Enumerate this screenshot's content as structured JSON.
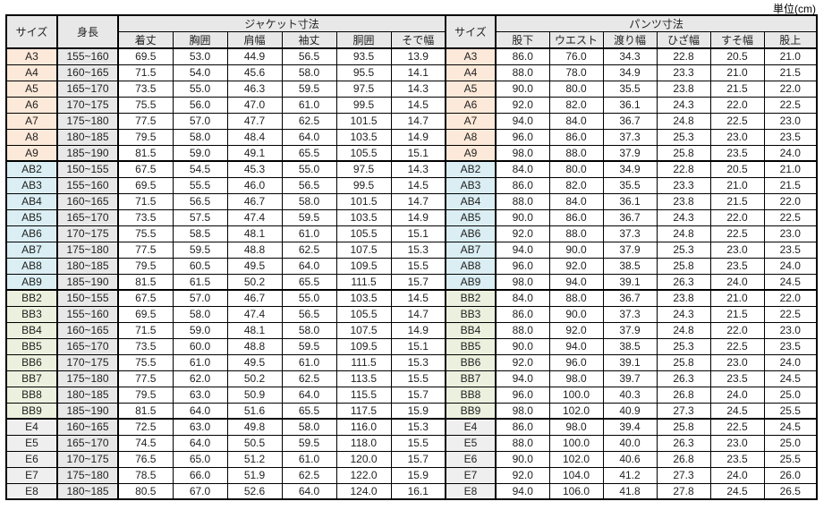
{
  "unit_label": "単位(cm)",
  "table": {
    "headers": {
      "size_left": "サイズ",
      "height": "身長",
      "jacket_group": "ジャケット寸法",
      "jacket_cols": [
        "着丈",
        "胸囲",
        "肩幅",
        "袖丈",
        "胴囲",
        "そで幅"
      ],
      "size_right": "サイズ",
      "pants_group": "パンツ寸法",
      "pants_cols": [
        "股下",
        "ウエスト",
        "渡り幅",
        "ひざ幅",
        "すそ幅",
        "股上"
      ]
    },
    "colors": {
      "header_bg": "#E8E8E8",
      "height_col_bg": "#E8E8E8",
      "group_a": "#FDE9D9",
      "group_ab": "#DAEEF3",
      "group_bb": "#EBF1DE",
      "group_e": "#EFEFEF",
      "border": "#000000"
    },
    "groups": [
      {
        "name": "A",
        "row_color": "#FDE9D9",
        "rows": [
          {
            "size": "A3",
            "height": "155~160",
            "jacket": [
              "69.5",
              "53.0",
              "44.9",
              "56.5",
              "93.5",
              "13.9"
            ],
            "pants": [
              "86.0",
              "76.0",
              "34.3",
              "22.8",
              "20.5",
              "21.0"
            ]
          },
          {
            "size": "A4",
            "height": "160~165",
            "jacket": [
              "71.5",
              "54.0",
              "45.6",
              "58.0",
              "95.5",
              "14.1"
            ],
            "pants": [
              "88.0",
              "78.0",
              "34.9",
              "23.3",
              "21.0",
              "21.5"
            ]
          },
          {
            "size": "A5",
            "height": "165~170",
            "jacket": [
              "73.5",
              "55.0",
              "46.3",
              "59.5",
              "97.5",
              "14.3"
            ],
            "pants": [
              "90.0",
              "80.0",
              "35.5",
              "23.8",
              "21.5",
              "22.0"
            ]
          },
          {
            "size": "A6",
            "height": "170~175",
            "jacket": [
              "75.5",
              "56.0",
              "47.0",
              "61.0",
              "99.5",
              "14.5"
            ],
            "pants": [
              "92.0",
              "82.0",
              "36.1",
              "24.3",
              "22.0",
              "22.5"
            ]
          },
          {
            "size": "A7",
            "height": "175~180",
            "jacket": [
              "77.5",
              "57.0",
              "47.7",
              "62.5",
              "101.5",
              "14.7"
            ],
            "pants": [
              "94.0",
              "84.0",
              "36.7",
              "24.8",
              "22.5",
              "23.0"
            ]
          },
          {
            "size": "A8",
            "height": "180~185",
            "jacket": [
              "79.5",
              "58.0",
              "48.4",
              "64.0",
              "103.5",
              "14.9"
            ],
            "pants": [
              "96.0",
              "86.0",
              "37.3",
              "25.3",
              "23.0",
              "23.5"
            ]
          },
          {
            "size": "A9",
            "height": "185~190",
            "jacket": [
              "81.5",
              "59.0",
              "49.1",
              "65.5",
              "105.5",
              "15.1"
            ],
            "pants": [
              "98.0",
              "88.0",
              "37.9",
              "25.8",
              "23.5",
              "24.0"
            ]
          }
        ]
      },
      {
        "name": "AB",
        "row_color": "#DAEEF3",
        "rows": [
          {
            "size": "AB2",
            "height": "150~155",
            "jacket": [
              "67.5",
              "54.5",
              "45.3",
              "55.0",
              "97.5",
              "14.3"
            ],
            "pants": [
              "84.0",
              "80.0",
              "34.9",
              "22.8",
              "20.5",
              "21.0"
            ]
          },
          {
            "size": "AB3",
            "height": "155~160",
            "jacket": [
              "69.5",
              "55.5",
              "46.0",
              "56.5",
              "99.5",
              "14.5"
            ],
            "pants": [
              "86.0",
              "82.0",
              "35.5",
              "23.3",
              "21.0",
              "21.5"
            ]
          },
          {
            "size": "AB4",
            "height": "160~165",
            "jacket": [
              "71.5",
              "56.5",
              "46.7",
              "58.0",
              "101.5",
              "14.7"
            ],
            "pants": [
              "88.0",
              "84.0",
              "36.1",
              "23.8",
              "21.5",
              "22.0"
            ]
          },
          {
            "size": "AB5",
            "height": "165~170",
            "jacket": [
              "73.5",
              "57.5",
              "47.4",
              "59.5",
              "103.5",
              "14.9"
            ],
            "pants": [
              "90.0",
              "86.0",
              "36.7",
              "24.3",
              "22.0",
              "22.5"
            ]
          },
          {
            "size": "AB6",
            "height": "170~175",
            "jacket": [
              "75.5",
              "58.5",
              "48.1",
              "61.0",
              "105.5",
              "15.1"
            ],
            "pants": [
              "92.0",
              "88.0",
              "37.3",
              "24.8",
              "22.5",
              "23.0"
            ]
          },
          {
            "size": "AB7",
            "height": "175~180",
            "jacket": [
              "77.5",
              "59.5",
              "48.8",
              "62.5",
              "107.5",
              "15.3"
            ],
            "pants": [
              "94.0",
              "90.0",
              "37.9",
              "25.3",
              "23.0",
              "23.5"
            ]
          },
          {
            "size": "AB8",
            "height": "180~185",
            "jacket": [
              "79.5",
              "60.5",
              "49.5",
              "64.0",
              "109.5",
              "15.5"
            ],
            "pants": [
              "96.0",
              "92.0",
              "38.5",
              "25.8",
              "23.5",
              "24.0"
            ]
          },
          {
            "size": "AB9",
            "height": "185~190",
            "jacket": [
              "81.5",
              "61.5",
              "50.2",
              "65.5",
              "111.5",
              "15.7"
            ],
            "pants": [
              "98.0",
              "94.0",
              "39.1",
              "26.3",
              "24.0",
              "24.5"
            ]
          }
        ]
      },
      {
        "name": "BB",
        "row_color": "#EBF1DE",
        "rows": [
          {
            "size": "BB2",
            "height": "150~155",
            "jacket": [
              "67.5",
              "57.0",
              "46.7",
              "55.0",
              "103.5",
              "14.5"
            ],
            "pants": [
              "84.0",
              "88.0",
              "36.7",
              "23.8",
              "21.0",
              "22.0"
            ]
          },
          {
            "size": "BB3",
            "height": "155~160",
            "jacket": [
              "69.5",
              "58.0",
              "47.4",
              "56.5",
              "105.5",
              "14.7"
            ],
            "pants": [
              "86.0",
              "90.0",
              "37.3",
              "24.3",
              "21.5",
              "22.5"
            ]
          },
          {
            "size": "BB4",
            "height": "160~165",
            "jacket": [
              "71.5",
              "59.0",
              "48.1",
              "58.0",
              "107.5",
              "14.9"
            ],
            "pants": [
              "88.0",
              "92.0",
              "37.9",
              "24.8",
              "22.0",
              "23.0"
            ]
          },
          {
            "size": "BB5",
            "height": "165~170",
            "jacket": [
              "73.5",
              "60.0",
              "48.8",
              "59.5",
              "109.5",
              "15.1"
            ],
            "pants": [
              "90.0",
              "94.0",
              "38.5",
              "25.3",
              "22.5",
              "23.5"
            ]
          },
          {
            "size": "BB6",
            "height": "170~175",
            "jacket": [
              "75.5",
              "61.0",
              "49.5",
              "61.0",
              "111.5",
              "15.3"
            ],
            "pants": [
              "92.0",
              "96.0",
              "39.1",
              "25.8",
              "23.0",
              "24.0"
            ]
          },
          {
            "size": "BB7",
            "height": "175~180",
            "jacket": [
              "77.5",
              "62.0",
              "50.2",
              "62.5",
              "113.5",
              "15.5"
            ],
            "pants": [
              "94.0",
              "98.0",
              "39.7",
              "26.3",
              "23.5",
              "24.5"
            ]
          },
          {
            "size": "BB8",
            "height": "180~185",
            "jacket": [
              "79.5",
              "63.0",
              "50.9",
              "64.0",
              "115.5",
              "15.7"
            ],
            "pants": [
              "96.0",
              "100.0",
              "40.3",
              "26.8",
              "24.0",
              "25.0"
            ]
          },
          {
            "size": "BB9",
            "height": "185~190",
            "jacket": [
              "81.5",
              "64.0",
              "51.6",
              "65.5",
              "117.5",
              "15.9"
            ],
            "pants": [
              "98.0",
              "102.0",
              "40.9",
              "27.3",
              "24.5",
              "25.5"
            ]
          }
        ]
      },
      {
        "name": "E",
        "row_color": "#EFEFEF",
        "rows": [
          {
            "size": "E4",
            "height": "160~165",
            "jacket": [
              "72.5",
              "63.0",
              "49.8",
              "58.0",
              "116.0",
              "15.3"
            ],
            "pants": [
              "86.0",
              "98.0",
              "39.4",
              "25.8",
              "22.5",
              "24.5"
            ]
          },
          {
            "size": "E5",
            "height": "165~170",
            "jacket": [
              "74.5",
              "64.0",
              "50.5",
              "59.5",
              "118.0",
              "15.5"
            ],
            "pants": [
              "88.0",
              "100.0",
              "40.0",
              "26.3",
              "23.0",
              "25.0"
            ]
          },
          {
            "size": "E6",
            "height": "170~175",
            "jacket": [
              "76.5",
              "65.0",
              "51.2",
              "61.0",
              "120.0",
              "15.7"
            ],
            "pants": [
              "90.0",
              "102.0",
              "40.6",
              "26.8",
              "23.5",
              "25.5"
            ]
          },
          {
            "size": "E7",
            "height": "175~180",
            "jacket": [
              "78.5",
              "66.0",
              "51.9",
              "62.5",
              "122.0",
              "15.9"
            ],
            "pants": [
              "92.0",
              "104.0",
              "41.2",
              "27.3",
              "24.0",
              "26.0"
            ]
          },
          {
            "size": "E8",
            "height": "180~185",
            "jacket": [
              "80.5",
              "67.0",
              "52.6",
              "64.0",
              "124.0",
              "16.1"
            ],
            "pants": [
              "94.0",
              "106.0",
              "41.8",
              "27.8",
              "24.5",
              "26.5"
            ]
          }
        ]
      }
    ]
  }
}
